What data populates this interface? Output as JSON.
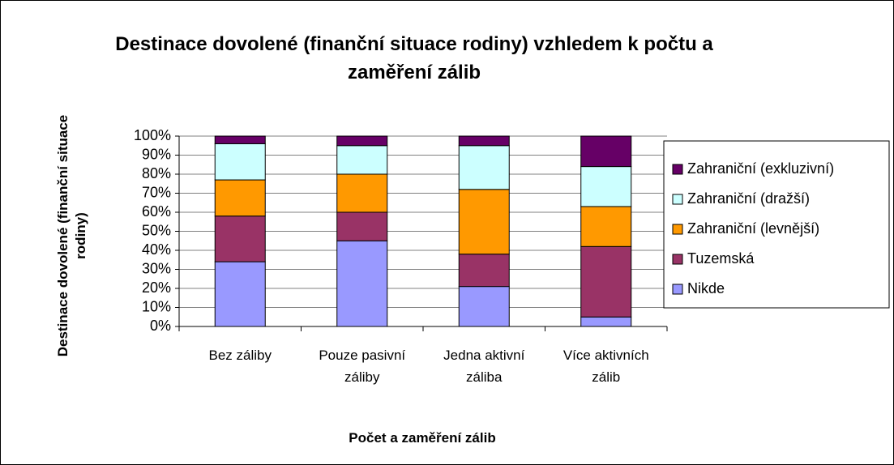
{
  "chart_data": {
    "type": "stacked_bar_percent",
    "title": "Destinace dovolené (finanční situace rodiny) vzhledem k počtu a zaměření zálib",
    "xlabel": "Počet a zaměření zálib",
    "ylabel": "Destinace dovolené (finanční situace rodiny)",
    "categories": [
      "Bez záliby",
      "Pouze pasivní záliby",
      "Jedna aktivní záliba",
      "Více aktivních zálib"
    ],
    "series": [
      {
        "name": "Nikde",
        "color": "#9999ff",
        "values": [
          34,
          45,
          21,
          5
        ]
      },
      {
        "name": "Tuzemská",
        "color": "#993366",
        "values": [
          24,
          15,
          17,
          37
        ]
      },
      {
        "name": "Zahraniční (levnější)",
        "color": "#ff9900",
        "values": [
          19,
          20,
          34,
          21
        ]
      },
      {
        "name": "Zahraniční (dražší)",
        "color": "#ccffff",
        "values": [
          19,
          15,
          23,
          21
        ]
      },
      {
        "name": "Zahraniční (exkluzivní)",
        "color": "#660066",
        "values": [
          4,
          5,
          5,
          16
        ]
      }
    ],
    "ylim": [
      0,
      100
    ],
    "yticks": [
      {
        "value": 0,
        "label": "0%"
      },
      {
        "value": 10,
        "label": "10%"
      },
      {
        "value": 20,
        "label": "20%"
      },
      {
        "value": 30,
        "label": "30%"
      },
      {
        "value": 40,
        "label": "40%"
      },
      {
        "value": 50,
        "label": "50%"
      },
      {
        "value": 60,
        "label": "60%"
      },
      {
        "value": 70,
        "label": "70%"
      },
      {
        "value": 80,
        "label": "80%"
      },
      {
        "value": 90,
        "label": "90%"
      },
      {
        "value": 100,
        "label": "100%"
      }
    ],
    "grid": true,
    "legend": "right"
  }
}
